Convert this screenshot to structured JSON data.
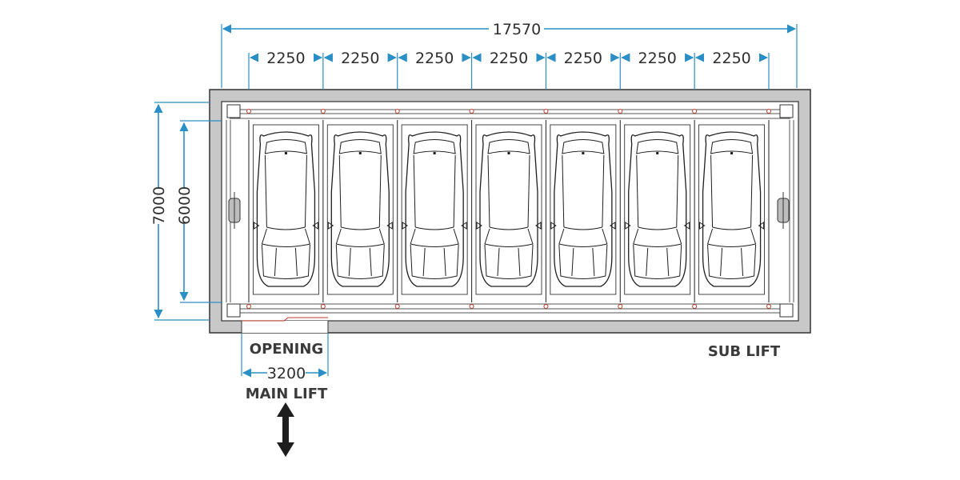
{
  "diagram": {
    "overall_width": "17570",
    "bay_widths": [
      "2250",
      "2250",
      "2250",
      "2250",
      "2250",
      "2250",
      "2250"
    ],
    "overall_depth": "7000",
    "inner_depth": "6000",
    "opening_width": "3200",
    "labels": {
      "opening": "OPENING",
      "main_lift": "MAIN LIFT",
      "sub_lift": "SUB LIFT"
    },
    "bay_count": 7,
    "colors": {
      "dimension": "#2a8fc7",
      "frame": "#c8c8c8",
      "accent": "#c0392b",
      "ink": "#1e1e1e"
    },
    "icons": {
      "direction": "double-arrow-vertical-icon"
    }
  }
}
